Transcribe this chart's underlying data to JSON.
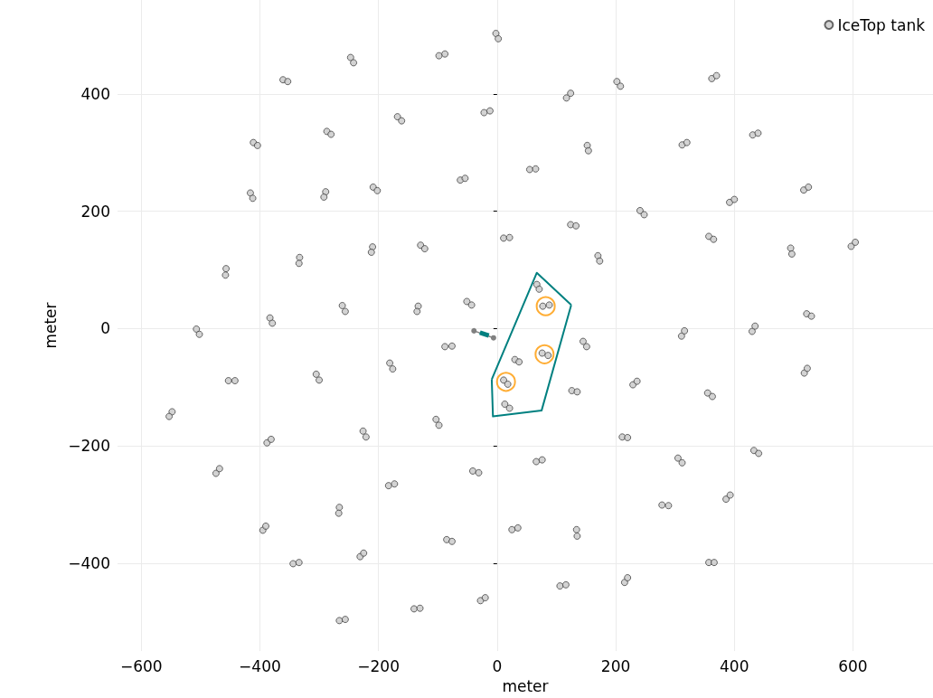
{
  "chart_data": {
    "type": "scatter",
    "xlabel": "meter",
    "ylabel": "meter",
    "xlim": [
      -640,
      735
    ],
    "ylim": [
      -550,
      560
    ],
    "xticks": [
      {
        "value": -600,
        "label": "−600"
      },
      {
        "value": -400,
        "label": "−400"
      },
      {
        "value": -200,
        "label": "−200"
      },
      0,
      200,
      400,
      600
    ],
    "yticks": [
      {
        "value": -400,
        "label": "−400"
      },
      {
        "value": -200,
        "label": "−200"
      },
      0,
      200,
      400
    ],
    "grid": true,
    "legend": "top right",
    "marker": "circle",
    "series": [
      {
        "name": "IceTop tank",
        "type": "scatter",
        "color": "#c8c8c8",
        "x": [
          -2,
          2,
          -98,
          -88,
          -247,
          -242,
          -361,
          -353,
          -22,
          -12,
          -168,
          -161,
          -287,
          -280,
          -411,
          -404,
          -62,
          -54,
          -209,
          -202,
          -289,
          -292,
          -416,
          -412,
          -129,
          -122,
          -210,
          -212,
          -333,
          -334,
          -457,
          -458,
          -51,
          -43,
          -133,
          -135,
          -261,
          -256,
          -383,
          -379,
          -507,
          -502,
          117,
          124,
          202,
          208,
          362,
          370,
          11,
          21,
          55,
          65,
          152,
          154,
          312,
          320,
          431,
          440,
          124,
          133,
          170,
          173,
          241,
          248,
          357,
          365,
          392,
          400,
          517,
          525,
          495,
          497,
          597,
          604,
          67,
          71,
          77,
          88,
          522,
          530,
          311,
          316,
          430,
          435,
          -88,
          -76,
          -181,
          -176,
          -453,
          -442,
          -305,
          -300,
          -548,
          -553,
          -103,
          -98,
          -226,
          -221,
          -388,
          -381,
          -41,
          -31,
          -183,
          -173,
          -474,
          -468,
          -266,
          -267,
          -395,
          -390,
          -85,
          -76,
          -231,
          -225,
          -344,
          -334,
          -140,
          -130,
          -28,
          -20,
          -266,
          -256,
          30,
          37,
          76,
          86,
          11,
          18,
          13,
          21,
          145,
          151,
          126,
          135,
          229,
          236,
          355,
          363,
          518,
          523,
          211,
          220,
          305,
          312,
          433,
          441,
          66,
          76,
          278,
          289,
          386,
          393,
          25,
          35,
          134,
          135,
          357,
          366,
          106,
          116,
          215,
          220
        ],
        "values": [
          503,
          494,
          465,
          468,
          462,
          453,
          424,
          421,
          368,
          371,
          361,
          354,
          336,
          331,
          317,
          312,
          253,
          256,
          241,
          235,
          233,
          224,
          231,
          222,
          142,
          136,
          139,
          130,
          121,
          111,
          102,
          91,
          46,
          40,
          38,
          29,
          39,
          29,
          18,
          9,
          -1,
          -10,
          393,
          401,
          421,
          413,
          426,
          431,
          154,
          155,
          271,
          272,
          312,
          303,
          313,
          317,
          330,
          333,
          177,
          175,
          124,
          115,
          201,
          194,
          157,
          152,
          215,
          220,
          236,
          241,
          137,
          127,
          140,
          147,
          75,
          67,
          38,
          40,
          25,
          21,
          -13,
          -4,
          -5,
          4,
          -31,
          -30,
          -59,
          -69,
          -89,
          -89,
          -78,
          -88,
          -142,
          -150,
          -155,
          -165,
          -175,
          -185,
          -195,
          -189,
          -243,
          -246,
          -268,
          -265,
          -247,
          -239,
          -305,
          -315,
          -344,
          -337,
          -360,
          -363,
          -389,
          -383,
          -401,
          -399,
          -478,
          -477,
          -464,
          -459,
          -498,
          -496,
          -53,
          -57,
          -42,
          -46,
          -88,
          -95,
          -129,
          -136,
          -22,
          -31,
          -106,
          -108,
          -96,
          -90,
          -110,
          -116,
          -76,
          -68,
          -185,
          -186,
          -221,
          -229,
          -208,
          -213,
          -227,
          -224,
          -301,
          -302,
          -291,
          -284,
          -343,
          -340,
          -343,
          -354,
          -399,
          -399,
          -439,
          -437,
          -433,
          -425
        ]
      },
      {
        "type": "scatter",
        "color": "#ff9900",
        "x": [
          82,
          80,
          15
        ],
        "values": [
          38,
          -44,
          -91
        ]
      },
      {
        "type": "line",
        "color": "#008080",
        "marker": "none",
        "x": [
          -9,
          67,
          125,
          null,
          -9,
          -7,
          75,
          125
        ],
        "values": [
          -87,
          95,
          40,
          null,
          -87,
          -150,
          -140,
          40
        ]
      },
      {
        "type": "line",
        "color": "#808080",
        "marker": "circle",
        "x": [
          -39,
          -6
        ],
        "values": [
          -4,
          -16
        ]
      },
      {
        "type": "line",
        "color": "#008080",
        "marker": "none",
        "x": [
          -29,
          -14
        ],
        "values": [
          -7,
          -12
        ]
      }
    ]
  }
}
